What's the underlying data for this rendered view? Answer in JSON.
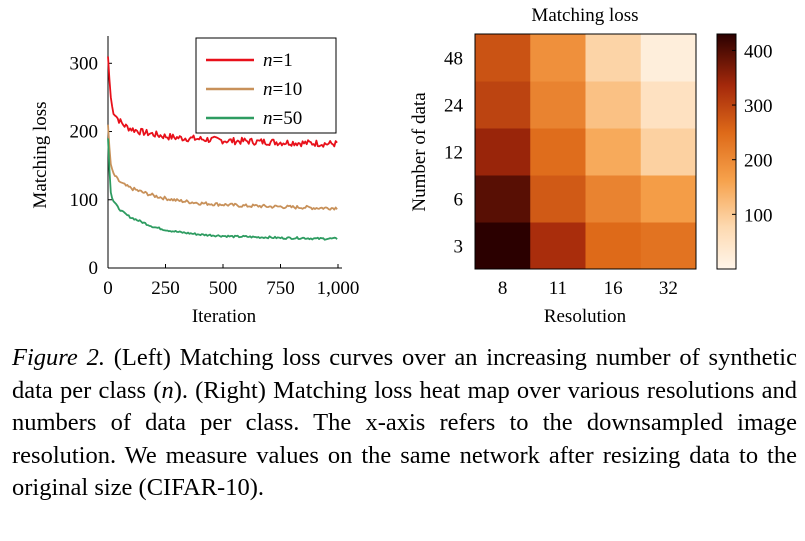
{
  "chart_data": [
    {
      "type": "line",
      "title": "",
      "xlabel": "Iteration",
      "ylabel": "Matching loss",
      "xlim": [
        0,
        1000
      ],
      "ylim": [
        0,
        340
      ],
      "x_ticks": [
        0,
        250,
        500,
        750,
        1000
      ],
      "x_tick_labels": [
        "0",
        "250",
        "500",
        "750",
        "1,000"
      ],
      "y_ticks": [
        0,
        100,
        200,
        300
      ],
      "y_tick_labels": [
        "0",
        "100",
        "200",
        "300"
      ],
      "grid": false,
      "legend_position": "top-right",
      "series": [
        {
          "name": "n=1",
          "legend_var": "n",
          "legend_value": "=1",
          "color": "#e8101a",
          "x": [
            0,
            10,
            20,
            40,
            60,
            80,
            100,
            150,
            200,
            250,
            300,
            350,
            400,
            450,
            500,
            550,
            600,
            650,
            700,
            750,
            800,
            850,
            900,
            950,
            1000
          ],
          "y": [
            310,
            255,
            232,
            220,
            212,
            207,
            204,
            199,
            196,
            193,
            191,
            190,
            189,
            188,
            187,
            186,
            186,
            185,
            185,
            184,
            184,
            183,
            183,
            182,
            182
          ]
        },
        {
          "name": "n=10",
          "legend_var": "n",
          "legend_value": "=10",
          "color": "#c8915a",
          "x": [
            0,
            10,
            20,
            40,
            60,
            80,
            100,
            150,
            200,
            250,
            300,
            350,
            400,
            450,
            500,
            550,
            600,
            650,
            700,
            750,
            800,
            850,
            900,
            950,
            1000
          ],
          "y": [
            210,
            155,
            140,
            130,
            124,
            120,
            117,
            111,
            106,
            102,
            99,
            97,
            95,
            94,
            93,
            92,
            91,
            91,
            90,
            90,
            89,
            89,
            88,
            88,
            88
          ]
        },
        {
          "name": "n=50",
          "legend_var": "n",
          "legend_value": "=50",
          "color": "#2e9c61",
          "x": [
            0,
            10,
            20,
            40,
            60,
            80,
            100,
            150,
            200,
            250,
            300,
            350,
            400,
            450,
            500,
            550,
            600,
            650,
            700,
            750,
            800,
            850,
            900,
            950,
            1000
          ],
          "y": [
            190,
            115,
            100,
            90,
            83,
            78,
            74,
            67,
            60,
            56,
            53,
            51,
            49,
            48,
            47,
            46,
            46,
            45,
            45,
            44,
            44,
            44,
            43,
            43,
            43
          ]
        }
      ]
    },
    {
      "type": "heatmap",
      "title": "Matching loss",
      "xlabel": "Resolution",
      "ylabel": "Number of data",
      "x_categories": [
        "8",
        "11",
        "16",
        "32"
      ],
      "y_categories": [
        "3",
        "6",
        "12",
        "24",
        "48"
      ],
      "values": [
        [
          430,
          330,
          250,
          235
        ],
        [
          395,
          270,
          210,
          170
        ],
        [
          345,
          245,
          150,
          90
        ],
        [
          300,
          210,
          115,
          55
        ],
        [
          280,
          190,
          85,
          20
        ]
      ],
      "colorbar": {
        "range": [
          0,
          430
        ],
        "ticks": [
          100,
          200,
          300,
          400
        ],
        "tick_labels": [
          "100",
          "200",
          "300",
          "400"
        ],
        "colormap": "orange-sequential"
      }
    }
  ],
  "caption": {
    "figure_label": "Figure 2.",
    "part1": " (Left) Matching loss curves over an increasing number of synthetic data per class (",
    "math": "n",
    "part2": "). (Right) Matching loss heat map over various resolutions and numbers of data per class. The x-axis refers to the downsampled image resolution. We measure values on the same network after resizing data to the original size (CIFAR-10)."
  }
}
